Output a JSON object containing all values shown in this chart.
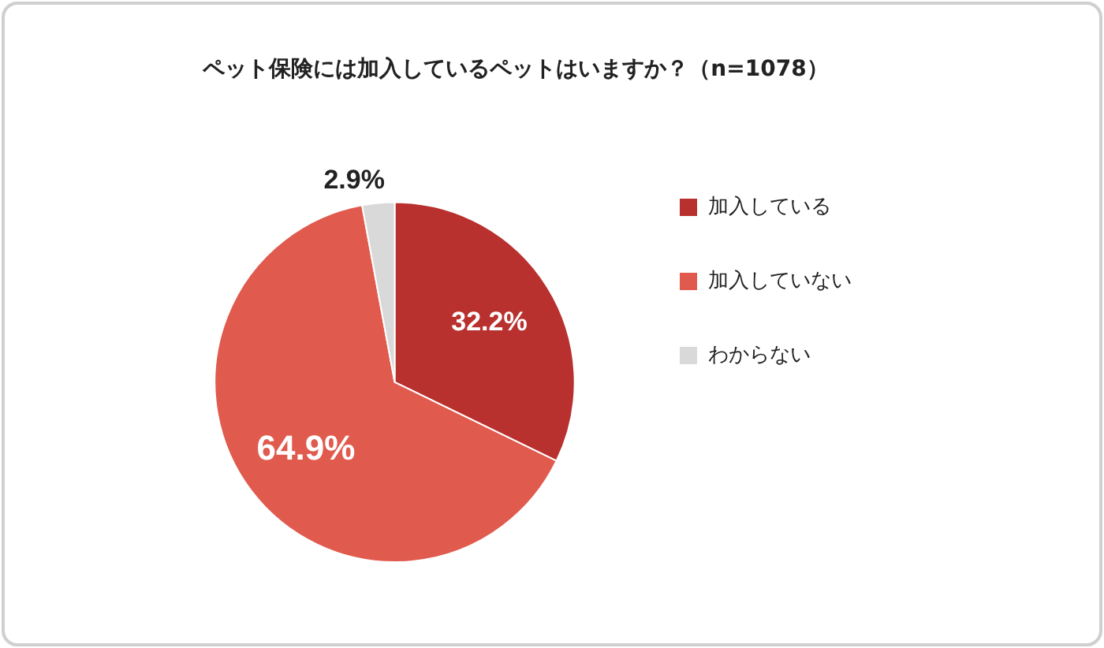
{
  "chart_data": {
    "type": "pie",
    "title": "ペット保険には加入しているペットはいますか？（n=1078）",
    "categories": [
      "加入している",
      "加入していない",
      "わからない"
    ],
    "values": [
      32.2,
      64.9,
      2.9
    ],
    "colors": [
      "#b8312f",
      "#e05a4e",
      "#d9d9d9"
    ],
    "value_labels": [
      "32.2%",
      "64.9%",
      "2.9%"
    ],
    "legend": "right"
  }
}
